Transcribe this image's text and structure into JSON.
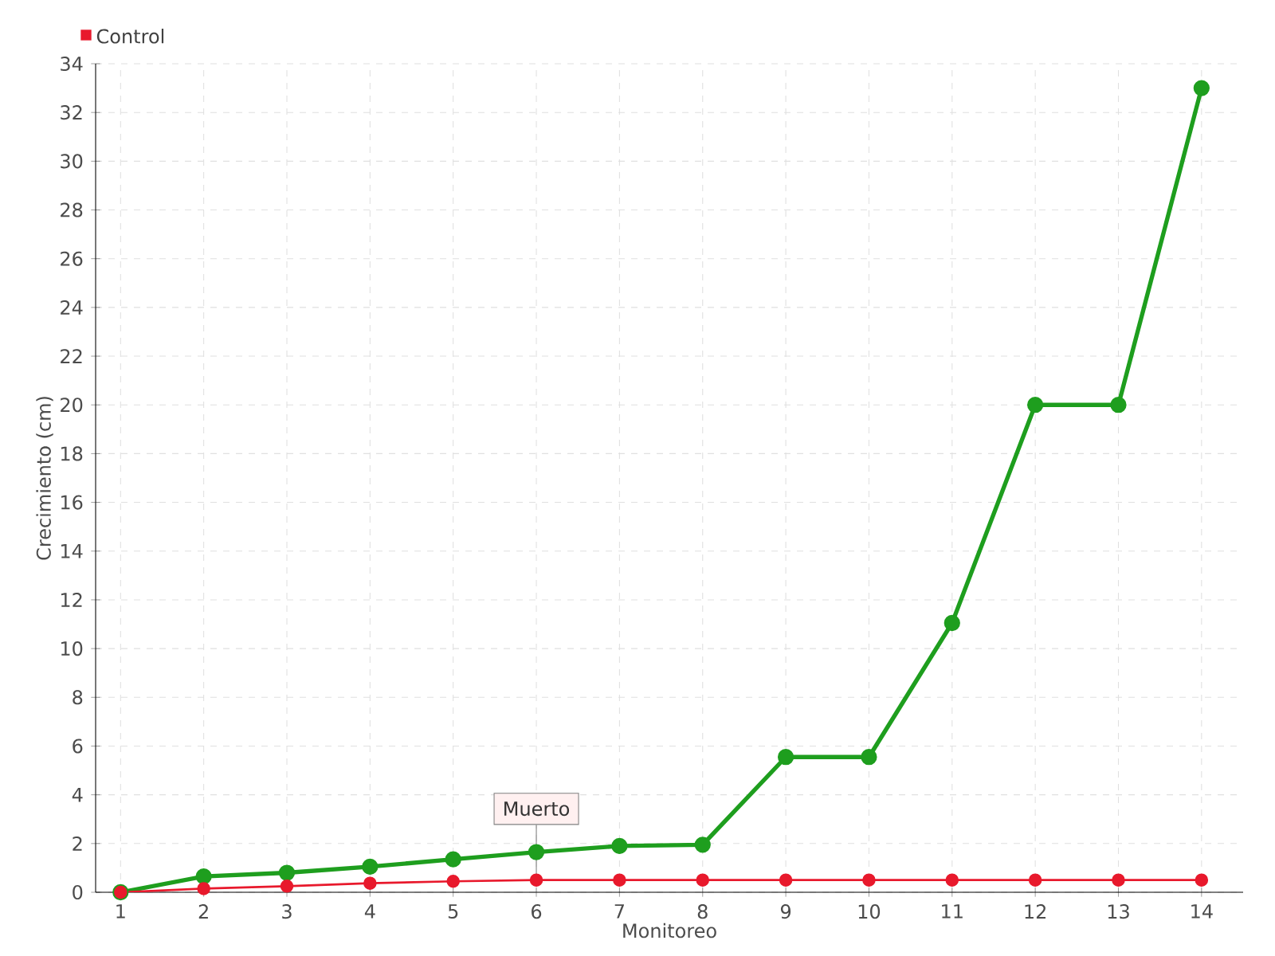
{
  "chart_data": {
    "type": "line",
    "categories": [
      "1",
      "2",
      "3",
      "4",
      "5",
      "6",
      "7",
      "8",
      "9",
      "10",
      "11",
      "12",
      "13",
      "14"
    ],
    "series": [
      {
        "color": "#1e9e1e",
        "values": [
          0,
          0.65,
          0.8,
          1.05,
          1.35,
          1.65,
          1.9,
          1.95,
          5.55,
          5.55,
          11.05,
          20,
          20,
          33
        ]
      },
      {
        "name": "Control",
        "color": "#e8192c",
        "values": [
          0,
          0.15,
          0.25,
          0.37,
          0.45,
          0.5,
          0.5,
          0.5,
          0.5,
          0.5,
          0.5,
          0.5,
          0.5,
          0.5
        ]
      }
    ],
    "xlabel": "Monitoreo",
    "ylabel": "Crecimiento (cm)",
    "ylim": [
      0,
      34
    ],
    "yticks": [
      0,
      2,
      4,
      6,
      8,
      10,
      12,
      14,
      16,
      18,
      20,
      22,
      24,
      26,
      28,
      30,
      32,
      34
    ],
    "annotations": [
      {
        "text": "Muerto",
        "x": "6",
        "y": 0.5
      }
    ],
    "grid": true,
    "legend": "top left",
    "marker": "circle"
  }
}
